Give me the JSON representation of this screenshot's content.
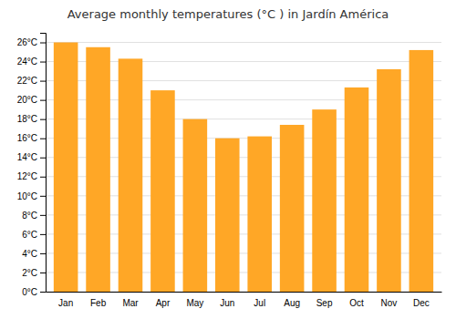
{
  "chart_data": {
    "type": "bar",
    "title": "Average monthly temperatures (°C ) in Jardín América",
    "categories": [
      "Jan",
      "Feb",
      "Mar",
      "Apr",
      "May",
      "Jun",
      "Jul",
      "Aug",
      "Sep",
      "Oct",
      "Nov",
      "Dec"
    ],
    "values": [
      26.0,
      25.5,
      24.3,
      21.0,
      18.0,
      16.0,
      16.2,
      17.4,
      19.0,
      21.3,
      23.2,
      25.2
    ],
    "color": "#FFA726",
    "ylim": [
      0,
      27
    ],
    "yticks": [
      {
        "value": 0,
        "label": "0°C"
      },
      {
        "value": 2,
        "label": "2°C"
      },
      {
        "value": 4,
        "label": "4°C"
      },
      {
        "value": 6,
        "label": "6°C"
      },
      {
        "value": 8,
        "label": "8°C"
      },
      {
        "value": 10,
        "label": "10°C"
      },
      {
        "value": 12,
        "label": "12°C"
      },
      {
        "value": 14,
        "label": "14°C"
      },
      {
        "value": 16,
        "label": "16°C"
      },
      {
        "value": 18,
        "label": "18°C"
      },
      {
        "value": 20,
        "label": "20°C"
      },
      {
        "value": 22,
        "label": "22°C"
      },
      {
        "value": 24,
        "label": "24°C"
      },
      {
        "value": 26,
        "label": "26°C"
      }
    ],
    "grid": true
  }
}
